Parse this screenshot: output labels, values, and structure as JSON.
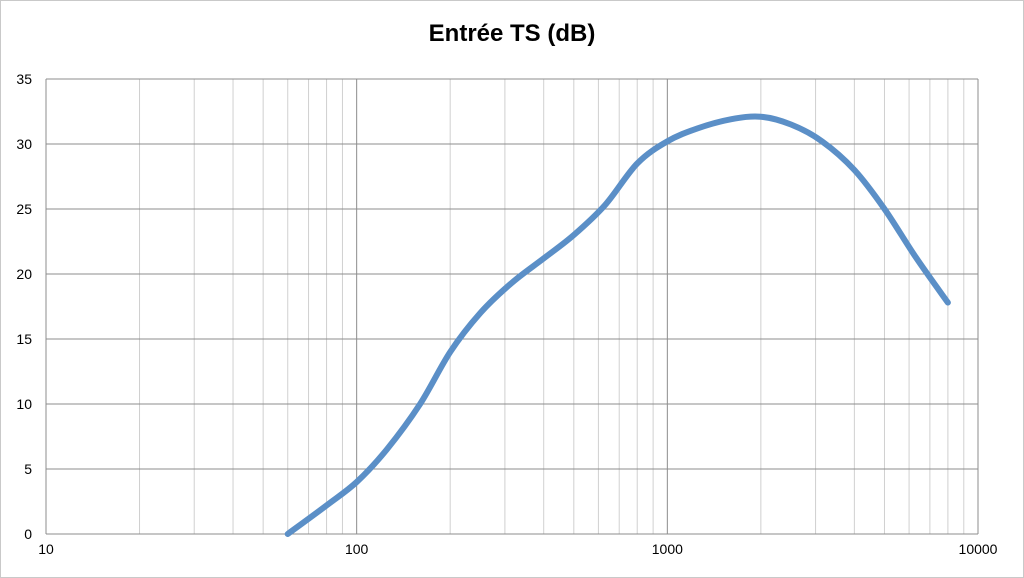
{
  "chart_data": {
    "type": "line",
    "title": "Entrée TS (dB)",
    "xlabel": "",
    "ylabel": "",
    "x_scale": "log",
    "xlim": [
      10,
      10000
    ],
    "ylim": [
      0,
      35
    ],
    "x_ticks": [
      10,
      100,
      1000,
      10000
    ],
    "x_tick_labels": [
      "10",
      "100",
      "1000",
      "10000"
    ],
    "y_ticks": [
      0,
      5,
      10,
      15,
      20,
      25,
      30,
      35
    ],
    "y_tick_labels": [
      "0",
      "5",
      "10",
      "15",
      "20",
      "25",
      "30",
      "35"
    ],
    "grid": true,
    "legend": "none",
    "series": [
      {
        "color": "#5b8fc7",
        "x": [
          60,
          80,
          100,
          125,
          160,
          200,
          250,
          315,
          400,
          500,
          630,
          800,
          1000,
          1250,
          1600,
          2000,
          2500,
          3150,
          4000,
          5000,
          6300,
          8000
        ],
        "y": [
          0,
          2.2,
          4,
          6.5,
          10,
          14,
          17,
          19.3,
          21.2,
          23,
          25.3,
          28.5,
          30.2,
          31.2,
          31.9,
          32.1,
          31.5,
          30.2,
          28,
          25,
          21.3,
          17.8
        ]
      }
    ]
  }
}
